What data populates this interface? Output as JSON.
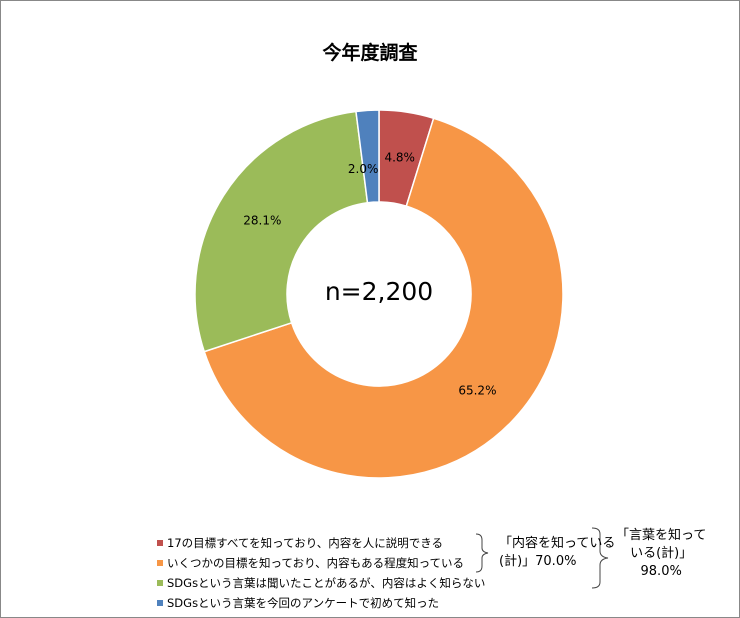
{
  "chart_data": {
    "type": "pie",
    "donut": true,
    "title": "今年度調査",
    "center_label": "n=2,200",
    "categories": [
      "17の目標すべてを知っており、内容を人に説明できる",
      "いくつかの目標を知っており、内容もある程度知っている",
      "SDGsという言葉は聞いたことがあるが、内容はよく知らない",
      "SDGsという言葉を今回のアンケートで初めて知った"
    ],
    "values": [
      4.8,
      65.2,
      28.1,
      2.0
    ],
    "data_labels": [
      "4.8%",
      "65.2%",
      "28.1%",
      "2.0%"
    ],
    "colors": [
      "#C0504D",
      "#F79646",
      "#9BBB59",
      "#4F81BD"
    ],
    "legend_position": "bottom-left",
    "annotations": [
      {
        "text_lines": [
          "「内容を知っている",
          "(計)」70.0%"
        ]
      },
      {
        "text_lines": [
          "「言葉を知って",
          "いる(計)」",
          "98.0%"
        ]
      }
    ]
  }
}
